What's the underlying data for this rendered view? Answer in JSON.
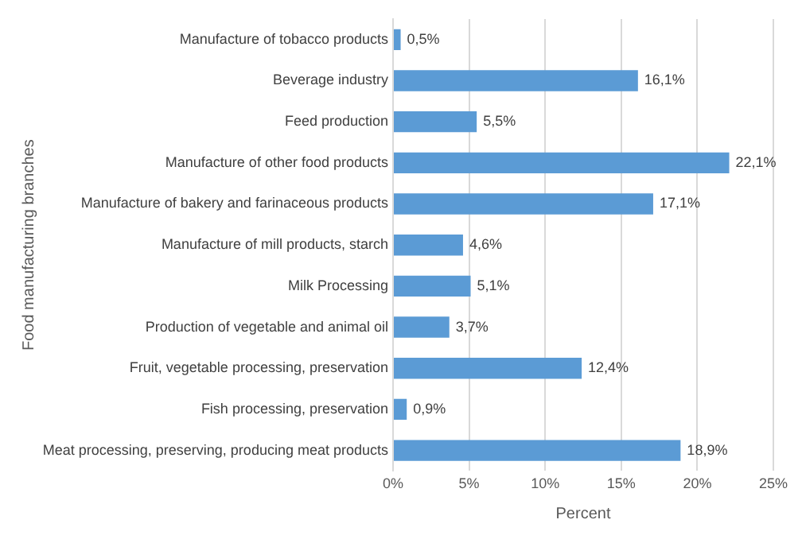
{
  "chart_data": {
    "type": "bar",
    "orientation": "horizontal",
    "xlabel": "Percent",
    "ylabel": "Food manufacturing branches",
    "categories": [
      "Manufacture of tobacco products",
      "Beverage industry",
      "Feed production",
      "Manufacture of other food products",
      "Manufacture of bakery and farinaceous products",
      "Manufacture of mill products, starch",
      "Milk Processing",
      "Production of vegetable and animal oil",
      "Fruit, vegetable processing, preservation",
      "Fish processing, preservation",
      "Meat processing, preserving, producing meat products"
    ],
    "values": [
      0.5,
      16.1,
      5.5,
      22.1,
      17.1,
      4.6,
      5.1,
      3.7,
      12.4,
      0.9,
      18.9
    ],
    "value_labels": [
      "0,5%",
      "16,1%",
      "5,5%",
      "22,1%",
      "17,1%",
      "4,6%",
      "5,1%",
      "3,7%",
      "12,4%",
      "0,9%",
      "18,9%"
    ],
    "color": "#5b9bd5",
    "xlim": [
      0,
      25
    ],
    "xticks": [
      {
        "value": 0,
        "label": "0%"
      },
      {
        "value": 5,
        "label": "5%"
      },
      {
        "value": 10,
        "label": "10%"
      },
      {
        "value": 15,
        "label": "15%"
      },
      {
        "value": 20,
        "label": "20%"
      },
      {
        "value": 25,
        "label": "25%"
      }
    ],
    "grid": "x"
  }
}
